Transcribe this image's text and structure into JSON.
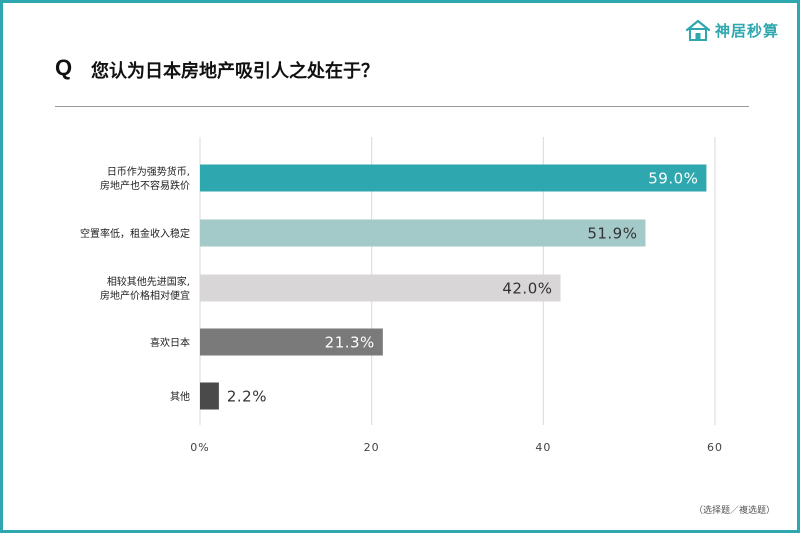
{
  "header": {
    "q_letter": "Q",
    "question": "您认为日本房地产吸引人之处在于？",
    "logo_text": "神居秒算"
  },
  "footer": {
    "note": "（选择题／複选题）"
  },
  "colors": {
    "accent": "#2ea7ae"
  },
  "chart_data": {
    "type": "bar",
    "orientation": "horizontal",
    "title": "您认为日本房地产吸引人之处在于？",
    "categories": [
      [
        "日币作为强势货币,",
        "房地产也不容易跌价"
      ],
      [
        "空置率低，租金收入稳定"
      ],
      [
        "相较其他先进国家,",
        "房地产价格相对便宜"
      ],
      [
        "喜欢日本"
      ],
      [
        "其他"
      ]
    ],
    "values": [
      59.0,
      51.9,
      42.0,
      21.3,
      2.2
    ],
    "value_labels": [
      "59.0%",
      "51.9%",
      "42.0%",
      "21.3%",
      "2.2%"
    ],
    "bar_colors": [
      "#2ea7ae",
      "#a3c9c9",
      "#d8d6d6",
      "#7a7a7a",
      "#4a4a4a"
    ],
    "label_colors": [
      "#ffffff",
      "#333333",
      "#333333",
      "#ffffff",
      "#333333"
    ],
    "xlim": [
      0,
      60
    ],
    "x_ticks": [
      0,
      20,
      40,
      60
    ],
    "x_tick_labels": [
      "0%",
      "20",
      "40",
      "60"
    ],
    "grid": true
  }
}
